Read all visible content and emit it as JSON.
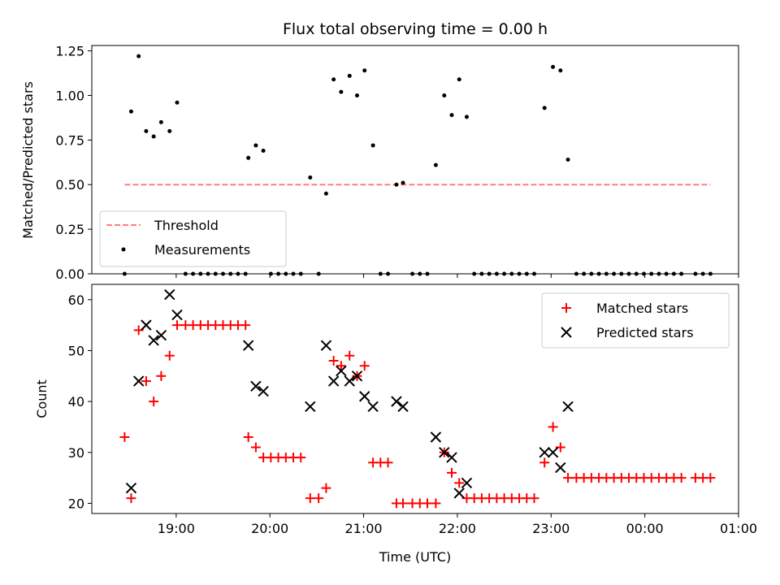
{
  "chart_data": [
    {
      "type": "scatter",
      "title": "Flux total observing time = 0.00 h",
      "xlabel": "",
      "ylabel": "Matched/Predicted stars",
      "ylim": [
        0,
        1.28
      ],
      "yticks": [
        0,
        0.25,
        0.5,
        0.75,
        1.0,
        1.25
      ],
      "ytick_labels": [
        "0.00",
        "0.25",
        "0.50",
        "0.75",
        "1.00",
        "1.25"
      ],
      "x_unit": "hours since 18:00 UTC",
      "xlim": [
        0.1,
        7.0
      ],
      "grid": false,
      "legend": "lower-left",
      "threshold": {
        "name": "Threshold",
        "value": 0.5,
        "x_range": [
          0.45,
          6.7
        ],
        "color": "#ff7f7f"
      },
      "series": [
        {
          "name": "Measurements",
          "color": "#000000",
          "marker": "dot",
          "points": [
            [
              0.45,
              0.0
            ],
            [
              0.52,
              0.91
            ],
            [
              0.6,
              1.22
            ],
            [
              0.68,
              0.8
            ],
            [
              0.76,
              0.77
            ],
            [
              0.84,
              0.85
            ],
            [
              0.93,
              0.8
            ],
            [
              1.01,
              0.96
            ],
            [
              1.1,
              0.0
            ],
            [
              1.18,
              0.0
            ],
            [
              1.26,
              0.0
            ],
            [
              1.34,
              0.0
            ],
            [
              1.42,
              0.0
            ],
            [
              1.5,
              0.0
            ],
            [
              1.58,
              0.0
            ],
            [
              1.66,
              0.0
            ],
            [
              1.74,
              0.0
            ],
            [
              1.77,
              0.65
            ],
            [
              1.85,
              0.72
            ],
            [
              1.93,
              0.69
            ],
            [
              2.01,
              0.0
            ],
            [
              2.09,
              0.0
            ],
            [
              2.17,
              0.0
            ],
            [
              2.25,
              0.0
            ],
            [
              2.33,
              0.0
            ],
            [
              2.43,
              0.54
            ],
            [
              2.52,
              0.0
            ],
            [
              2.6,
              0.45
            ],
            [
              2.68,
              1.09
            ],
            [
              2.76,
              1.02
            ],
            [
              2.85,
              1.11
            ],
            [
              2.93,
              1.0
            ],
            [
              3.01,
              1.14
            ],
            [
              3.1,
              0.72
            ],
            [
              3.18,
              0.0
            ],
            [
              3.26,
              0.0
            ],
            [
              3.35,
              0.5
            ],
            [
              3.42,
              0.51
            ],
            [
              3.52,
              0.0
            ],
            [
              3.6,
              0.0
            ],
            [
              3.68,
              0.0
            ],
            [
              3.77,
              0.61
            ],
            [
              3.86,
              1.0
            ],
            [
              3.94,
              0.89
            ],
            [
              4.02,
              1.09
            ],
            [
              4.1,
              0.88
            ],
            [
              4.18,
              0.0
            ],
            [
              4.26,
              0.0
            ],
            [
              4.34,
              0.0
            ],
            [
              4.42,
              0.0
            ],
            [
              4.5,
              0.0
            ],
            [
              4.58,
              0.0
            ],
            [
              4.66,
              0.0
            ],
            [
              4.74,
              0.0
            ],
            [
              4.82,
              0.0
            ],
            [
              4.93,
              0.93
            ],
            [
              5.02,
              1.16
            ],
            [
              5.1,
              1.14
            ],
            [
              5.18,
              0.64
            ],
            [
              5.27,
              0.0
            ],
            [
              5.35,
              0.0
            ],
            [
              5.43,
              0.0
            ],
            [
              5.51,
              0.0
            ],
            [
              5.59,
              0.0
            ],
            [
              5.67,
              0.0
            ],
            [
              5.75,
              0.0
            ],
            [
              5.83,
              0.0
            ],
            [
              5.91,
              0.0
            ],
            [
              5.99,
              0.0
            ],
            [
              6.07,
              0.0
            ],
            [
              6.15,
              0.0
            ],
            [
              6.23,
              0.0
            ],
            [
              6.31,
              0.0
            ],
            [
              6.39,
              0.0
            ],
            [
              6.54,
              0.0
            ],
            [
              6.62,
              0.0
            ],
            [
              6.7,
              0.0
            ]
          ]
        }
      ]
    },
    {
      "type": "scatter",
      "title": "",
      "xlabel": "Time (UTC)",
      "ylabel": "Count",
      "ylim": [
        18,
        63
      ],
      "yticks": [
        20,
        30,
        40,
        50,
        60
      ],
      "ytick_labels": [
        "20",
        "30",
        "40",
        "50",
        "60"
      ],
      "x_unit": "hours since 18:00 UTC",
      "xlim": [
        0.1,
        7.0
      ],
      "xticks": [
        1,
        2,
        3,
        4,
        5,
        6,
        7
      ],
      "xtick_labels": [
        "19:00",
        "20:00",
        "21:00",
        "22:00",
        "23:00",
        "00:00",
        "01:00"
      ],
      "grid": false,
      "legend": "upper-right",
      "series": [
        {
          "name": "Matched stars",
          "color": "#ff0000",
          "marker": "plus",
          "points": [
            [
              0.45,
              33
            ],
            [
              0.52,
              21
            ],
            [
              0.6,
              54
            ],
            [
              0.68,
              44
            ],
            [
              0.76,
              40
            ],
            [
              0.84,
              45
            ],
            [
              0.93,
              49
            ],
            [
              1.01,
              55
            ],
            [
              1.1,
              55
            ],
            [
              1.18,
              55
            ],
            [
              1.26,
              55
            ],
            [
              1.34,
              55
            ],
            [
              1.42,
              55
            ],
            [
              1.5,
              55
            ],
            [
              1.58,
              55
            ],
            [
              1.66,
              55
            ],
            [
              1.74,
              55
            ],
            [
              1.77,
              33
            ],
            [
              1.85,
              31
            ],
            [
              1.93,
              29
            ],
            [
              2.01,
              29
            ],
            [
              2.09,
              29
            ],
            [
              2.17,
              29
            ],
            [
              2.25,
              29
            ],
            [
              2.33,
              29
            ],
            [
              2.43,
              21
            ],
            [
              2.52,
              21
            ],
            [
              2.6,
              23
            ],
            [
              2.68,
              48
            ],
            [
              2.76,
              47
            ],
            [
              2.85,
              49
            ],
            [
              2.93,
              45
            ],
            [
              3.01,
              47
            ],
            [
              3.1,
              28
            ],
            [
              3.18,
              28
            ],
            [
              3.26,
              28
            ],
            [
              3.35,
              20
            ],
            [
              3.42,
              20
            ],
            [
              3.52,
              20
            ],
            [
              3.6,
              20
            ],
            [
              3.68,
              20
            ],
            [
              3.77,
              20
            ],
            [
              3.86,
              30
            ],
            [
              3.94,
              26
            ],
            [
              4.02,
              24
            ],
            [
              4.1,
              21
            ],
            [
              4.18,
              21
            ],
            [
              4.26,
              21
            ],
            [
              4.34,
              21
            ],
            [
              4.42,
              21
            ],
            [
              4.5,
              21
            ],
            [
              4.58,
              21
            ],
            [
              4.66,
              21
            ],
            [
              4.74,
              21
            ],
            [
              4.82,
              21
            ],
            [
              4.93,
              28
            ],
            [
              5.02,
              35
            ],
            [
              5.1,
              31
            ],
            [
              5.18,
              25
            ],
            [
              5.27,
              25
            ],
            [
              5.35,
              25
            ],
            [
              5.43,
              25
            ],
            [
              5.51,
              25
            ],
            [
              5.59,
              25
            ],
            [
              5.67,
              25
            ],
            [
              5.75,
              25
            ],
            [
              5.83,
              25
            ],
            [
              5.91,
              25
            ],
            [
              5.99,
              25
            ],
            [
              6.07,
              25
            ],
            [
              6.15,
              25
            ],
            [
              6.23,
              25
            ],
            [
              6.31,
              25
            ],
            [
              6.39,
              25
            ],
            [
              6.54,
              25
            ],
            [
              6.62,
              25
            ],
            [
              6.7,
              25
            ]
          ]
        },
        {
          "name": "Predicted stars",
          "color": "#000000",
          "marker": "x",
          "points": [
            [
              0.52,
              23
            ],
            [
              0.6,
              44
            ],
            [
              0.68,
              55
            ],
            [
              0.76,
              52
            ],
            [
              0.84,
              53
            ],
            [
              0.93,
              61
            ],
            [
              1.01,
              57
            ],
            [
              1.77,
              51
            ],
            [
              1.85,
              43
            ],
            [
              1.93,
              42
            ],
            [
              2.43,
              39
            ],
            [
              2.6,
              51
            ],
            [
              2.68,
              44
            ],
            [
              2.76,
              46
            ],
            [
              2.85,
              44
            ],
            [
              2.93,
              45
            ],
            [
              3.01,
              41
            ],
            [
              3.1,
              39
            ],
            [
              3.35,
              40
            ],
            [
              3.42,
              39
            ],
            [
              3.77,
              33
            ],
            [
              3.86,
              30
            ],
            [
              3.94,
              29
            ],
            [
              4.02,
              22
            ],
            [
              4.1,
              24
            ],
            [
              4.93,
              30
            ],
            [
              5.02,
              30
            ],
            [
              5.1,
              27
            ],
            [
              5.18,
              39
            ]
          ]
        }
      ]
    }
  ]
}
